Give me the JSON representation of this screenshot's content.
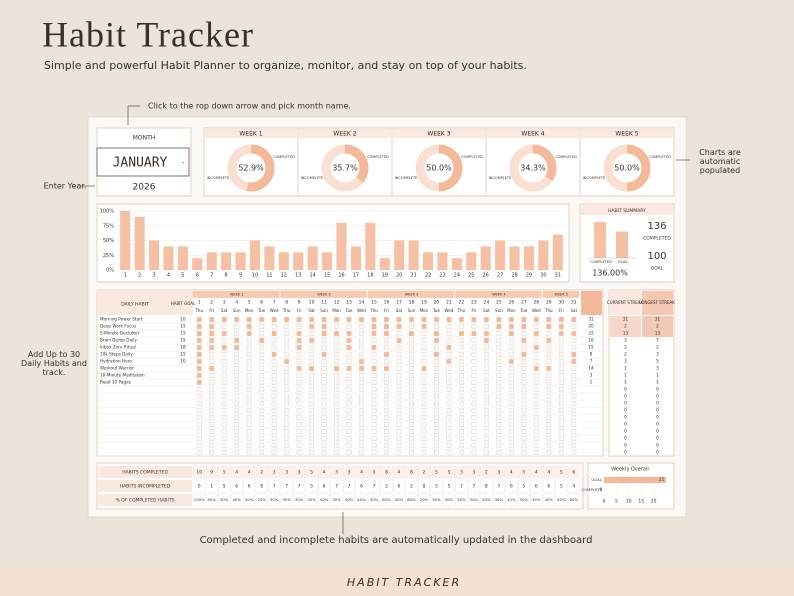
{
  "header": {
    "title": "Habit Tracker",
    "subtitle": "Simple and powerful Habit Planner to organize, monitor, and stay on top of your habits."
  },
  "callouts": {
    "month": "Click to the rop down arrow and pick month name.",
    "year": "Enter Year.",
    "charts": "Charts are automatic populated",
    "habits": "Add Up to 30 Daily Habits and track.",
    "dashboard": "Completed and incomplete habits are automatically updated in the dashboard"
  },
  "footer": "HABIT TRACKER",
  "month_box": {
    "label": "MONTH",
    "month": "JANUARY",
    "year": "2026"
  },
  "weeks": {
    "labels": [
      "COMPLETED",
      "INCOMPLETE"
    ],
    "items": [
      {
        "name": "WEEK 1",
        "value": 52.9,
        "label": "52.9%"
      },
      {
        "name": "WEEK 2",
        "value": 35.7,
        "label": "35.7%"
      },
      {
        "name": "WEEK 3",
        "value": 50.0,
        "label": "50.0%"
      },
      {
        "name": "WEEK 4",
        "value": 34.3,
        "label": "34.3%"
      },
      {
        "name": "WEEK 5",
        "value": 50.0,
        "label": "50.0%"
      }
    ]
  },
  "daily_chart": {
    "categories": [
      1,
      2,
      3,
      4,
      5,
      6,
      7,
      8,
      9,
      10,
      11,
      12,
      13,
      14,
      15,
      16,
      17,
      18,
      19,
      20,
      21,
      22,
      23,
      24,
      25,
      26,
      27,
      28,
      29,
      30,
      31
    ],
    "values": [
      100,
      90,
      50,
      40,
      40,
      20,
      30,
      30,
      30,
      50,
      40,
      30,
      30,
      40,
      30,
      80,
      40,
      80,
      20,
      50,
      50,
      30,
      30,
      20,
      30,
      40,
      50,
      40,
      40,
      50,
      60
    ],
    "ylim": [
      0,
      100
    ],
    "yticks": [
      {
        "value": 0,
        "label": "0%"
      },
      {
        "value": 25,
        "label": "25%"
      },
      {
        "value": 50,
        "label": "50%"
      },
      {
        "value": 75,
        "label": "75%"
      },
      {
        "value": 100,
        "label": "100%"
      }
    ],
    "color": "#f5c0a4"
  },
  "summary": {
    "title": "HABIT SUMMARY",
    "completed": 136,
    "goal": 100,
    "completed_label": "COMPLETED",
    "goal_label": "GOAL",
    "percent": "136.00%"
  },
  "table": {
    "name_header": "DAILY HABIT",
    "goal_header": "HABIT GOAL",
    "current_header": "CURRENT STREAK",
    "longest_header": "LONGEST STREAK",
    "weekdays": [
      "Thu",
      "Fri",
      "Sat",
      "Sun",
      "Mon",
      "Tue",
      "Wed",
      "Thu",
      "Fri",
      "Sat",
      "Sun",
      "Mon",
      "Tue",
      "Wed",
      "Thu",
      "Fri",
      "Sat",
      "Sun",
      "Mon",
      "Tue",
      "Wed",
      "Thu",
      "Fri",
      "Sat",
      "Sun",
      "Mon",
      "Tue",
      "Wed",
      "Thu",
      "Fri",
      "Sat"
    ],
    "habits": [
      {
        "name": "Morning Power Start",
        "goal": 10,
        "achieved": 31,
        "checks": "1111111111111111111111111111111"
      },
      {
        "name": "Deep Work Focus",
        "goal": 15,
        "achieved": 20,
        "checks": "1100100001100011101000001110110"
      },
      {
        "name": "5-Minute Declutter",
        "goal": 15,
        "achieved": 22,
        "checks": "1110101010111011010101110101011"
      },
      {
        "name": "Brain Dump Daily",
        "goal": 15,
        "achieved": 16,
        "checks": "1101010011001000100100010010100"
      },
      {
        "name": "Inbox Zero Ritual",
        "goal": 18,
        "achieved": 15,
        "checks": "1111000010001010000010000001000"
      },
      {
        "name": "10k Steps Daily",
        "goal": 15,
        "achieved": 8,
        "checks": "1000001000100001000100000010001"
      },
      {
        "name": "Hydration Hero",
        "goal": 10,
        "achieved": 7,
        "checks": "1000000100000100000010000100001"
      },
      {
        "name": "Workout Warrior",
        "achieved": 14,
        "checks": "1100000011011111001000000001100"
      },
      {
        "name": "10-Minute Meditation",
        "achieved": 3,
        "checks": "1000000000000000000000000000000"
      },
      {
        "name": "Read 10 Pages",
        "achieved": 1,
        "checks": "1000000000000000000000000000000"
      }
    ],
    "current_streak": [
      31,
      2,
      13,
      3,
      2,
      2,
      3,
      1,
      1,
      1,
      0,
      0,
      0,
      0,
      0,
      0,
      0,
      0,
      0,
      0
    ],
    "longest_streak": [
      31,
      2,
      13,
      7,
      2,
      3,
      5,
      3,
      1,
      1,
      0,
      0,
      0,
      0,
      0,
      0,
      0,
      0,
      0,
      0
    ]
  },
  "totals": {
    "completed_label": "HABITS COMPLETED",
    "incomplete_label": "HABITS INCOMPLETED",
    "percent_label": "% OF COMPLETED HABITS",
    "completed": [
      10,
      9,
      5,
      4,
      4,
      2,
      3,
      3,
      3,
      5,
      4,
      3,
      3,
      4,
      3,
      8,
      4,
      8,
      2,
      5,
      5,
      3,
      3,
      2,
      3,
      4,
      5,
      4,
      4,
      5,
      6
    ],
    "incomplete": [
      0,
      1,
      5,
      6,
      6,
      8,
      7,
      7,
      7,
      5,
      6,
      7,
      7,
      6,
      7,
      2,
      6,
      2,
      8,
      5,
      5,
      7,
      7,
      8,
      7,
      6,
      5,
      6,
      6,
      5,
      4
    ],
    "percent": [
      "100%",
      "90%",
      "50%",
      "40%",
      "40%",
      "20%",
      "30%",
      "30%",
      "30%",
      "50%",
      "40%",
      "30%",
      "30%",
      "40%",
      "30%",
      "80%",
      "40%",
      "80%",
      "20%",
      "50%",
      "50%",
      "30%",
      "30%",
      "20%",
      "30%",
      "40%",
      "50%",
      "40%",
      "40%",
      "50%",
      "60%"
    ]
  },
  "weekly_overall": {
    "title": "Weekly Overall",
    "categories": [
      "GOAL",
      "COMPLETE"
    ],
    "values": [
      25,
      0
    ],
    "xlim": [
      0,
      25
    ],
    "xticks": [
      0,
      5,
      10,
      15,
      20
    ],
    "color": "#f5b896"
  }
}
